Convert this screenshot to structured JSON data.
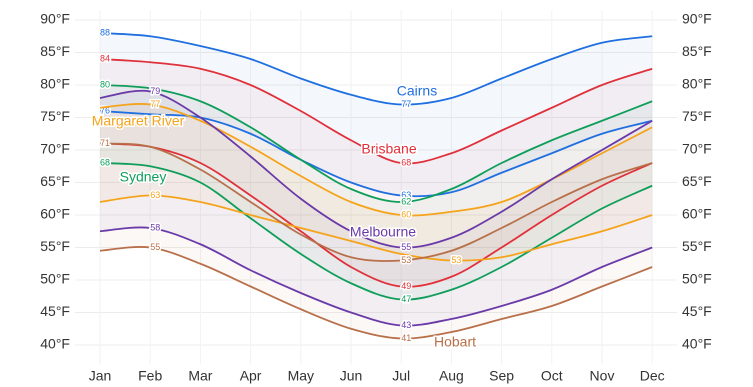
{
  "chart_data": {
    "type": "line",
    "categories": [
      "Jan",
      "Feb",
      "Mar",
      "Apr",
      "May",
      "Jun",
      "Jul",
      "Aug",
      "Sep",
      "Oct",
      "Nov",
      "Dec"
    ],
    "ylim": [
      37,
      91.5
    ],
    "yticks": [
      {
        "value": 40,
        "label": "40°F"
      },
      {
        "value": 45,
        "label": "45°F"
      },
      {
        "value": 50,
        "label": "50°F"
      },
      {
        "value": 55,
        "label": "55°F"
      },
      {
        "value": 60,
        "label": "60°F"
      },
      {
        "value": 65,
        "label": "65°F"
      },
      {
        "value": 70,
        "label": "70°F"
      },
      {
        "value": 75,
        "label": "75°F"
      },
      {
        "value": 80,
        "label": "80°F"
      },
      {
        "value": 85,
        "label": "85°F"
      },
      {
        "value": 90,
        "label": "90°F"
      }
    ],
    "grid": true,
    "series": [
      {
        "name": "Cairns",
        "color": "#1f6fe0",
        "high": [
          88,
          87.5,
          86,
          84,
          81,
          78.5,
          77,
          78,
          81,
          84,
          86.5,
          87.5
        ],
        "low": [
          76,
          75.5,
          75,
          72.5,
          68.5,
          65,
          63,
          63.5,
          66.5,
          69.5,
          72.5,
          74.5
        ]
      },
      {
        "name": "Brisbane",
        "color": "#e0303a",
        "high": [
          84,
          83.5,
          82.5,
          80,
          76,
          71.5,
          68,
          69.5,
          73,
          76.5,
          80,
          82.5
        ],
        "low": [
          71,
          70.5,
          68,
          63,
          57.5,
          52,
          49,
          50.5,
          55,
          60,
          64.5,
          68
        ]
      },
      {
        "name": "Sydney",
        "color": "#0e9e5a",
        "high": [
          80,
          79.5,
          77.5,
          73.5,
          68.5,
          64,
          62,
          64,
          68,
          71.5,
          74.5,
          77.5
        ],
        "low": [
          68,
          67.5,
          65,
          59.5,
          54,
          49.5,
          47,
          48.5,
          52,
          56.5,
          61,
          64.5
        ]
      },
      {
        "name": "Margaret River",
        "color": "#f5a31a",
        "high": [
          76.5,
          77,
          74.5,
          70.5,
          66,
          62,
          60,
          60.5,
          62,
          65.5,
          69.5,
          73.5
        ],
        "low": [
          62,
          63,
          62,
          60,
          58,
          56,
          54,
          53,
          53.5,
          55.5,
          57.5,
          60
        ]
      },
      {
        "name": "Melbourne",
        "color": "#6a3aa8",
        "high": [
          78,
          79,
          75,
          69,
          62.5,
          57.5,
          55,
          56.5,
          60.5,
          65.5,
          70,
          74.5
        ],
        "low": [
          57.5,
          58,
          55.5,
          51.5,
          48,
          45,
          43,
          44,
          46,
          48.5,
          52,
          55
        ]
      },
      {
        "name": "Hobart",
        "color": "#b8704a",
        "high": [
          71,
          70.5,
          67,
          62,
          57,
          53.5,
          53,
          54.5,
          58,
          62,
          65.5,
          68
        ],
        "low": [
          54.5,
          55,
          52.5,
          49,
          45.5,
          42.5,
          41,
          42,
          44,
          46,
          49,
          52
        ]
      }
    ]
  }
}
